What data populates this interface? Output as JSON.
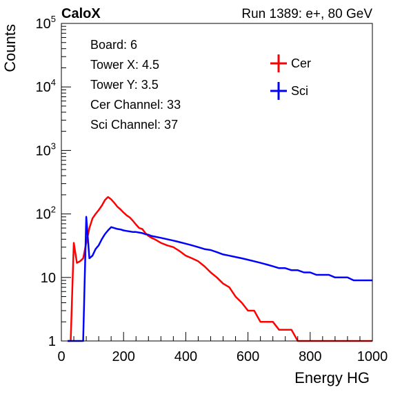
{
  "header": {
    "left_label": "CaloX",
    "right_label": "Run 1389: e+, 80 GeV"
  },
  "info_lines": [
    "Board: 6",
    "Tower X: 4.5",
    "Tower Y: 3.5",
    "Cer Channel: 33",
    "Sci Channel: 37"
  ],
  "chart_data": {
    "type": "line",
    "title": "",
    "xlabel": "Energy HG",
    "ylabel": "Counts",
    "xlim": [
      0,
      1000
    ],
    "ylim": [
      1,
      100000
    ],
    "yscale": "log",
    "grid": false,
    "legend_position": "top-right",
    "x_ticks": [
      0,
      200,
      400,
      600,
      800,
      1000
    ],
    "x_tick_labels": [
      "0",
      "200",
      "400",
      "600",
      "800",
      "1000"
    ],
    "y_ticks": [
      1,
      10,
      100,
      1000,
      10000,
      100000
    ],
    "y_tick_labels": [
      {
        "base": "1",
        "exp": ""
      },
      {
        "base": "10",
        "exp": ""
      },
      {
        "base": "10",
        "exp": "2"
      },
      {
        "base": "10",
        "exp": "3"
      },
      {
        "base": "10",
        "exp": "4"
      },
      {
        "base": "10",
        "exp": "5"
      }
    ],
    "x": [
      20,
      30,
      40,
      50,
      60,
      70,
      80,
      90,
      100,
      110,
      120,
      130,
      140,
      150,
      160,
      170,
      180,
      190,
      200,
      210,
      220,
      230,
      240,
      250,
      260,
      270,
      280,
      290,
      300,
      320,
      340,
      360,
      380,
      400,
      420,
      440,
      460,
      480,
      500,
      520,
      540,
      560,
      580,
      600,
      620,
      640,
      660,
      680,
      700,
      720,
      740,
      760,
      780,
      800,
      820,
      840,
      860,
      880,
      900,
      920,
      940,
      960,
      980,
      1000
    ],
    "series": [
      {
        "name": "Cer",
        "color": "#ff0000",
        "values": [
          0,
          0,
          35,
          17,
          18,
          20,
          35,
          60,
          85,
          100,
          115,
          135,
          165,
          185,
          170,
          150,
          130,
          118,
          105,
          95,
          88,
          78,
          68,
          60,
          58,
          50,
          45,
          42,
          40,
          35,
          32,
          30,
          26,
          22,
          20,
          18,
          15,
          12,
          10,
          8,
          7,
          5,
          4,
          3,
          3,
          2,
          2,
          2,
          1.5,
          1.5,
          1.5,
          1,
          1,
          1,
          1,
          1,
          1,
          1,
          1,
          1,
          1,
          1,
          1,
          1
        ]
      },
      {
        "name": "Sci",
        "color": "#0000ff",
        "values": [
          0,
          0,
          0,
          0,
          0,
          0,
          90,
          20,
          22,
          28,
          32,
          40,
          48,
          55,
          62,
          60,
          58,
          57,
          55,
          54,
          53,
          52,
          52,
          51,
          50,
          48,
          47,
          45,
          44,
          42,
          40,
          38,
          36,
          34,
          32,
          30,
          28,
          27,
          25,
          23,
          22,
          21,
          20,
          19,
          18,
          17,
          16,
          15,
          14,
          14,
          13,
          13,
          12,
          12,
          11,
          11,
          11,
          10,
          10,
          10,
          9,
          9,
          9,
          9
        ]
      }
    ]
  }
}
